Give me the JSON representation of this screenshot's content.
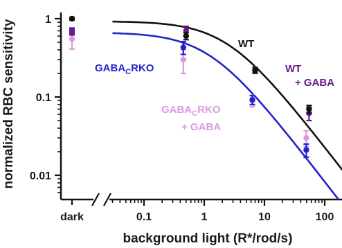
{
  "chart_data": {
    "type": "scatter",
    "xlabel": "background light (R*/rod/s)",
    "ylabel": "normalized RBC sensitivity",
    "xscale": "log",
    "yscale": "log",
    "xlim": [
      0.015,
      200
    ],
    "ylim": [
      0.006,
      1.6
    ],
    "x_ticks": [
      {
        "value": 0.1,
        "label": "0.1"
      },
      {
        "value": 1,
        "label": "1"
      },
      {
        "value": 10,
        "label": "10"
      },
      {
        "value": 100,
        "label": "100"
      }
    ],
    "x_dark_label": "dark",
    "y_ticks": [
      {
        "value": 1,
        "label": "1"
      },
      {
        "value": 0.1,
        "label": "0.1"
      },
      {
        "value": 0.01,
        "label": "0.01"
      }
    ],
    "axis_break": true,
    "series": [
      {
        "name": "WT",
        "color": "#111111",
        "dark": {
          "y": 1.0,
          "err": 0.04
        },
        "x": [
          0.5,
          7,
          55
        ],
        "y": [
          0.6,
          0.22,
          0.07
        ],
        "err": [
          0.06,
          0.015,
          0.008
        ]
      },
      {
        "name": "WT + GABA",
        "color": "#6a1a8c",
        "dark": {
          "y": 0.68,
          "err": 0.06
        },
        "x": [
          0.5,
          7,
          55
        ],
        "y": [
          0.7,
          0.22,
          0.062
        ],
        "err": [
          0.1,
          0.02,
          0.012
        ]
      },
      {
        "name": "GABAcRKO",
        "color": "#2222cc",
        "dark": {
          "y": 0.7,
          "err": 0.06
        },
        "x": [
          0.5,
          7,
          55
        ],
        "y": [
          0.43,
          0.092,
          0.021
        ],
        "err": [
          0.08,
          0.012,
          0.004
        ]
      },
      {
        "name": "GABAcRKO + GABA",
        "color": "#d99bdf",
        "dark": {
          "y": 0.55,
          "err": 0.14
        },
        "x": [
          0.5,
          7,
          55
        ],
        "y": [
          0.3,
          0.09,
          0.03
        ],
        "err": [
          0.1,
          0.015,
          0.007
        ]
      }
    ],
    "fit_curves": [
      {
        "series": "WT",
        "color": "#111111",
        "y0": 0.93,
        "half": 2.5
      },
      {
        "series": "GABAcRKO",
        "color": "#2222cc",
        "y0": 0.67,
        "half": 1.25
      }
    ],
    "annotations": {
      "wt": {
        "text": "WT",
        "color": "#111111"
      },
      "wt_gaba": {
        "line1": "WT",
        "line2": "+ GABA",
        "color": "#6a1a8c"
      },
      "rko": {
        "main": "GABA",
        "sub": "C",
        "rest": "RKO",
        "color": "#2222cc"
      },
      "rko_gaba": {
        "main": "GABA",
        "sub": "C",
        "rest": "RKO",
        "line2": "+ GABA",
        "color": "#d99bdf"
      }
    }
  }
}
